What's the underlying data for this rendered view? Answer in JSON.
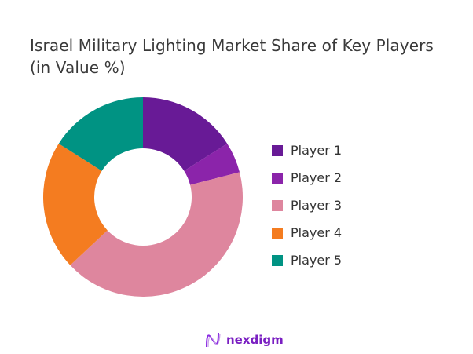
{
  "chart_data": {
    "type": "pie",
    "donut": true,
    "title": "Israel Military Lighting Market Share of Key Players (in Value %)",
    "title_lines": [
      "Israel Military Lighting Market Share of Key Players",
      "(in Value %)"
    ],
    "categories": [
      "Player 1",
      "Player 2",
      "Player 3",
      "Player 4",
      "Player 5"
    ],
    "values": [
      16,
      5,
      42,
      21,
      16
    ],
    "colors": [
      "#681a96",
      "#8b24aa",
      "#de869e",
      "#f47c20",
      "#009383"
    ],
    "legend_position": "right"
  },
  "logo": {
    "text": "nexdigm",
    "color": "#7a1fc2"
  }
}
